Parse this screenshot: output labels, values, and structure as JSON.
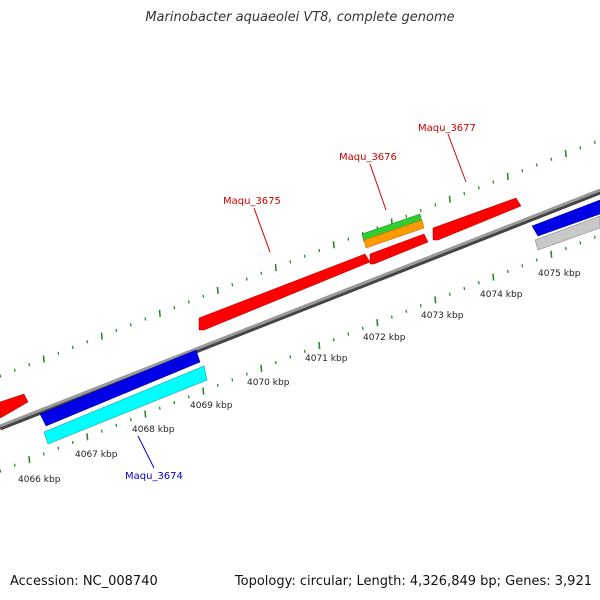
{
  "title": "Marinobacter aquaeolei VT8, complete genome",
  "footer": {
    "accession": "Accession: NC_008740",
    "stats": "Topology: circular; Length: 4,326,849 bp; Genes: 3,921"
  },
  "colors": {
    "forward_gene": "#ff0000",
    "reverse_gene": "#0000e6",
    "cyan_track": "#00ffff",
    "green_track": "#33cc33",
    "orange_track": "#ff9900",
    "gray_track": "#c8c8c8",
    "backbone": "#888888",
    "tick": "#2a8a2a",
    "label_forward": "#cc0000",
    "label_reverse": "#0000cc"
  },
  "scale_labels": [
    "4066 kbp",
    "4067 kbp",
    "4068 kbp",
    "4069 kbp",
    "4070 kbp",
    "4071 kbp",
    "4072 kbp",
    "4073 kbp",
    "4074 kbp",
    "4075 kbp"
  ],
  "gene_labels": [
    {
      "text": "Maqu_3674",
      "color": "#0000cc"
    },
    {
      "text": "Maqu_3675",
      "color": "#cc0000"
    },
    {
      "text": "Maqu_3676",
      "color": "#cc0000"
    },
    {
      "text": "Maqu_3677",
      "color": "#cc0000"
    }
  ]
}
